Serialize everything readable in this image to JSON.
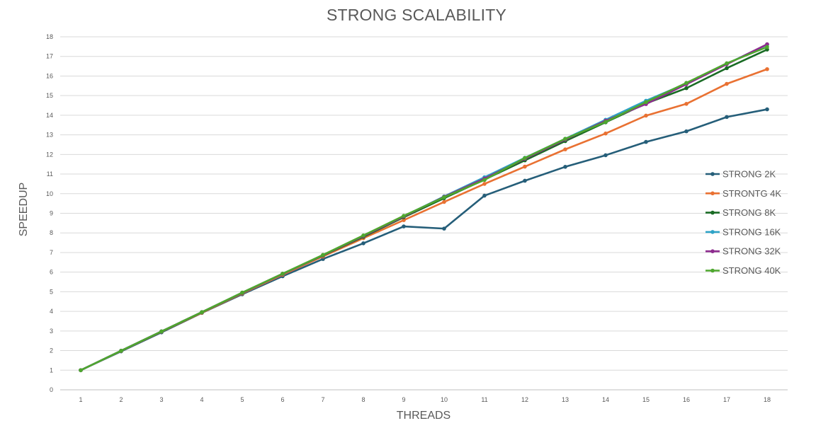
{
  "chart_data": {
    "type": "line",
    "title": "STRONG SCALABILITY",
    "xlabel": "THREADS",
    "ylabel": "SPEEDUP",
    "x": [
      1,
      2,
      3,
      4,
      5,
      6,
      7,
      8,
      9,
      10,
      11,
      12,
      13,
      14,
      15,
      16,
      17,
      18
    ],
    "xlim": [
      1,
      18
    ],
    "ylim": [
      0,
      18
    ],
    "y_ticks": [
      0,
      1,
      2,
      3,
      4,
      5,
      6,
      7,
      8,
      9,
      10,
      11,
      12,
      13,
      14,
      15,
      16,
      17,
      18
    ],
    "grid": true,
    "legend_position": "right",
    "series": [
      {
        "name": "STRONG 2K",
        "color": "#255e79",
        "values": [
          1.0,
          1.96,
          2.93,
          3.92,
          4.87,
          5.79,
          6.67,
          7.47,
          8.33,
          8.22,
          9.9,
          10.66,
          11.37,
          11.96,
          12.64,
          13.18,
          13.91,
          14.3
        ]
      },
      {
        "name": "STRONTG 4K",
        "color": "#e97132",
        "values": [
          1.0,
          1.98,
          2.96,
          3.93,
          4.91,
          5.87,
          6.8,
          7.73,
          8.65,
          9.58,
          10.5,
          11.38,
          12.26,
          13.07,
          13.98,
          14.58,
          15.6,
          16.35
        ]
      },
      {
        "name": "STRONG 8K",
        "color": "#196b24",
        "values": [
          1.0,
          1.99,
          2.97,
          3.95,
          4.94,
          5.92,
          6.85,
          7.8,
          8.8,
          9.77,
          10.72,
          11.7,
          12.68,
          13.64,
          14.6,
          15.38,
          16.4,
          17.35
        ]
      },
      {
        "name": "STRONG 16K",
        "color": "#2ea3c7",
        "values": [
          1.0,
          1.99,
          2.98,
          3.96,
          4.95,
          5.91,
          6.87,
          7.85,
          8.85,
          9.86,
          10.84,
          11.83,
          12.8,
          13.77,
          14.74,
          15.62,
          16.62,
          17.6
        ]
      },
      {
        "name": "STRONG 32K",
        "color": "#8e2c8f",
        "values": [
          1.0,
          1.99,
          2.98,
          3.96,
          4.95,
          5.91,
          6.87,
          7.84,
          8.84,
          9.84,
          10.77,
          11.78,
          12.76,
          13.72,
          14.57,
          15.58,
          16.6,
          17.62
        ]
      },
      {
        "name": "STRONG 40K",
        "color": "#4ea72e",
        "values": [
          1.0,
          1.99,
          2.98,
          3.96,
          4.96,
          5.92,
          6.88,
          7.87,
          8.87,
          9.82,
          10.7,
          11.82,
          12.8,
          13.66,
          14.67,
          15.65,
          16.65,
          17.48
        ]
      }
    ]
  }
}
